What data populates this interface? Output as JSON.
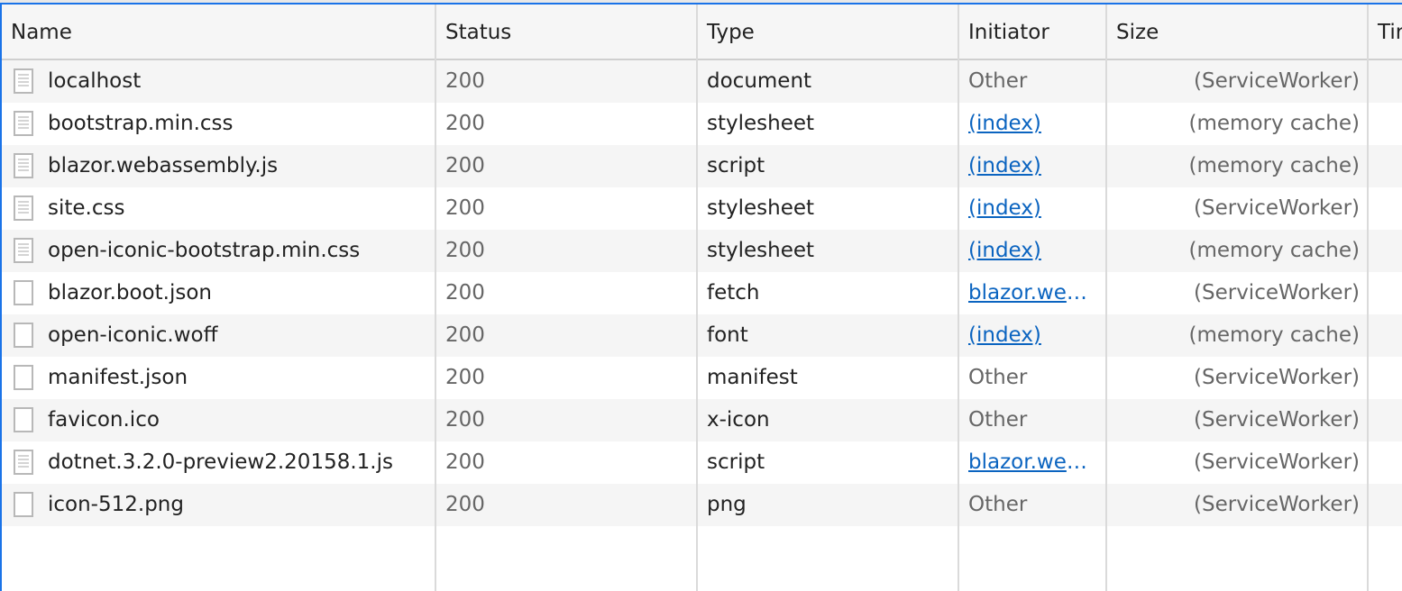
{
  "columns": [
    "Name",
    "Status",
    "Type",
    "Initiator",
    "Size",
    "Time"
  ],
  "columns_visible": [
    "Name",
    "Status",
    "Type",
    "Initiator",
    "Size",
    "Tir"
  ],
  "accent_color": "#1a73e8",
  "link_color": "#0b64c0",
  "rows": [
    {
      "name": "localhost",
      "status": "200",
      "type": "document",
      "initiator": "Other",
      "initiator_link": false,
      "size": "(ServiceWorker)",
      "icon": "document-icon"
    },
    {
      "name": "bootstrap.min.css",
      "status": "200",
      "type": "stylesheet",
      "initiator": "(index)",
      "initiator_link": true,
      "size": "(memory cache)",
      "icon": "document-icon"
    },
    {
      "name": "blazor.webassembly.js",
      "status": "200",
      "type": "script",
      "initiator": "(index)",
      "initiator_link": true,
      "size": "(memory cache)",
      "icon": "document-icon"
    },
    {
      "name": "site.css",
      "status": "200",
      "type": "stylesheet",
      "initiator": "(index)",
      "initiator_link": true,
      "size": "(ServiceWorker)",
      "icon": "document-icon"
    },
    {
      "name": "open-iconic-bootstrap.min.css",
      "status": "200",
      "type": "stylesheet",
      "initiator": "(index)",
      "initiator_link": true,
      "size": "(memory cache)",
      "icon": "document-icon"
    },
    {
      "name": "blazor.boot.json",
      "status": "200",
      "type": "fetch",
      "initiator": "blazor.webassembly.js",
      "initiator_link": true,
      "size": "(ServiceWorker)",
      "icon": "blank-file-icon"
    },
    {
      "name": "open-iconic.woff",
      "status": "200",
      "type": "font",
      "initiator": "(index)",
      "initiator_link": true,
      "size": "(memory cache)",
      "icon": "blank-file-icon"
    },
    {
      "name": "manifest.json",
      "status": "200",
      "type": "manifest",
      "initiator": "Other",
      "initiator_link": false,
      "size": "(ServiceWorker)",
      "icon": "blank-file-icon"
    },
    {
      "name": "favicon.ico",
      "status": "200",
      "type": "x-icon",
      "initiator": "Other",
      "initiator_link": false,
      "size": "(ServiceWorker)",
      "icon": "blank-file-icon"
    },
    {
      "name": "dotnet.3.2.0-preview2.20158.1.js",
      "status": "200",
      "type": "script",
      "initiator": "blazor.webassembly.js",
      "initiator_link": true,
      "size": "(ServiceWorker)",
      "icon": "document-icon"
    },
    {
      "name": "icon-512.png",
      "status": "200",
      "type": "png",
      "initiator": "Other",
      "initiator_link": false,
      "size": "(ServiceWorker)",
      "icon": "blank-file-icon"
    }
  ]
}
